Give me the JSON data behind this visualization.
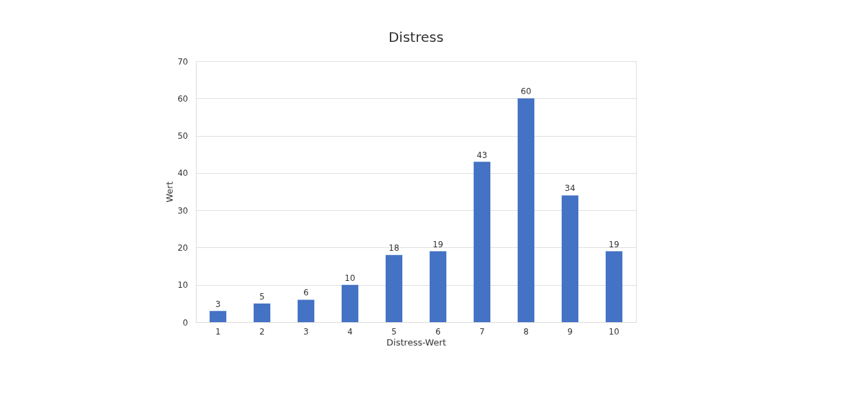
{
  "chart_data": {
    "type": "bar",
    "title": "Distress",
    "xlabel": "Distress-Wert",
    "ylabel": "Wert",
    "categories": [
      "1",
      "2",
      "3",
      "4",
      "5",
      "6",
      "7",
      "8",
      "9",
      "10"
    ],
    "values": [
      3,
      5,
      6,
      10,
      18,
      19,
      43,
      60,
      34,
      19
    ],
    "color": "#4472c4",
    "ylim": [
      0,
      70
    ],
    "yticks": [
      0,
      10,
      20,
      30,
      40,
      50,
      60,
      70
    ],
    "grid": "y",
    "data_labels": true
  }
}
